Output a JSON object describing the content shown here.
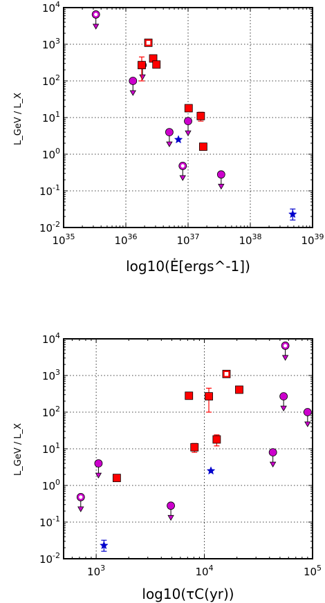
{
  "chart_data": [
    {
      "type": "scatter",
      "xscale": "log",
      "yscale": "log",
      "xlim": [
        1e+35,
        1e+39
      ],
      "ylim": [
        0.01,
        10000
      ],
      "grid": true,
      "xlabel": "log10(Ė[ergs^-1])",
      "ylabel": "L_GeV / L_X",
      "xticks": [
        {
          "v": 1e+35,
          "base": "10",
          "exp": "35"
        },
        {
          "v": 1e+36,
          "base": "10",
          "exp": "36"
        },
        {
          "v": 1e+37,
          "base": "10",
          "exp": "37"
        },
        {
          "v": 1e+38,
          "base": "10",
          "exp": "38"
        },
        {
          "v": 1e+39,
          "base": "10",
          "exp": "39"
        }
      ],
      "yticks": [
        {
          "v": 0.01,
          "base": "10",
          "exp": "-2"
        },
        {
          "v": 0.1,
          "base": "10",
          "exp": "-1"
        },
        {
          "v": 1,
          "base": "10",
          "exp": "0"
        },
        {
          "v": 10,
          "base": "10",
          "exp": "1"
        },
        {
          "v": 100,
          "base": "10",
          "exp": "2"
        },
        {
          "v": 1000,
          "base": "10",
          "exp": "3"
        },
        {
          "v": 10000,
          "base": "10",
          "exp": "4"
        }
      ],
      "points": [
        {
          "marker": "circle",
          "fill": "#cc00cc",
          "x": 1.3e+36,
          "y": 100,
          "upper_limit": true
        },
        {
          "marker": "circle",
          "fill": "#cc00cc",
          "x": 1.85e+36,
          "y": 270,
          "upper_limit": true
        },
        {
          "marker": "circle",
          "fill": "#cc00cc",
          "x": 5e+36,
          "y": 4.0,
          "upper_limit": true
        },
        {
          "marker": "circle",
          "fill": "#cc00cc",
          "x": 1e+37,
          "y": 8.0,
          "upper_limit": true
        },
        {
          "marker": "circle",
          "fill": "#cc00cc",
          "x": 3.4e+37,
          "y": 0.28,
          "upper_limit": true
        },
        {
          "marker": "circle-open",
          "fill": "#cc00cc",
          "x": 3.3e+35,
          "y": 6500,
          "upper_limit": true
        },
        {
          "marker": "circle-open",
          "fill": "#cc00cc",
          "x": 8.2e+36,
          "y": 0.48,
          "upper_limit": true
        },
        {
          "marker": "square",
          "fill": "#ff0000",
          "x": 1.8e+36,
          "y": 270,
          "err_low": 100,
          "err_high": 450
        },
        {
          "marker": "square",
          "fill": "#ff0000",
          "x": 2.75e+36,
          "y": 410
        },
        {
          "marker": "square",
          "fill": "#ff0000",
          "x": 3.1e+36,
          "y": 280
        },
        {
          "marker": "square",
          "fill": "#ff0000",
          "x": 1.02e+37,
          "y": 18
        },
        {
          "marker": "square",
          "fill": "#ff0000",
          "x": 1.6e+37,
          "y": 11,
          "err_low": 8,
          "err_high": 14
        },
        {
          "marker": "square",
          "fill": "#ff0000",
          "x": 1.75e+37,
          "y": 1.6
        },
        {
          "marker": "square-open",
          "fill": "#ff0000",
          "x": 2.3e+36,
          "y": 1100
        },
        {
          "marker": "star",
          "fill": "#0000cc",
          "x": 7e+36,
          "y": 2.5
        },
        {
          "marker": "star",
          "fill": "#0000cc",
          "x": 4.8e+38,
          "y": 0.023,
          "err_low": 0.016,
          "err_high": 0.032
        }
      ]
    },
    {
      "type": "scatter",
      "xscale": "log",
      "yscale": "log",
      "xlim": [
        500,
        100000
      ],
      "ylim": [
        0.01,
        10000
      ],
      "grid": true,
      "xlabel": "log10(τC(yr))",
      "ylabel": "L_GeV / L_X",
      "xticks": [
        {
          "v": 1000,
          "base": "10",
          "exp": "3"
        },
        {
          "v": 10000,
          "base": "10",
          "exp": "4"
        },
        {
          "v": 100000,
          "base": "10",
          "exp": "5"
        }
      ],
      "yticks": [
        {
          "v": 0.01,
          "base": "10",
          "exp": "-2"
        },
        {
          "v": 0.1,
          "base": "10",
          "exp": "-1"
        },
        {
          "v": 1,
          "base": "10",
          "exp": "0"
        },
        {
          "v": 10,
          "base": "10",
          "exp": "1"
        },
        {
          "v": 100,
          "base": "10",
          "exp": "2"
        },
        {
          "v": 1000,
          "base": "10",
          "exp": "3"
        },
        {
          "v": 10000,
          "base": "10",
          "exp": "4"
        }
      ],
      "points": [
        {
          "marker": "circle",
          "fill": "#cc00cc",
          "x": 1050,
          "y": 4.0,
          "upper_limit": true
        },
        {
          "marker": "circle",
          "fill": "#cc00cc",
          "x": 4900,
          "y": 0.28,
          "upper_limit": true
        },
        {
          "marker": "circle",
          "fill": "#cc00cc",
          "x": 43000,
          "y": 8.0,
          "upper_limit": true
        },
        {
          "marker": "circle",
          "fill": "#cc00cc",
          "x": 54000,
          "y": 270,
          "upper_limit": true
        },
        {
          "marker": "circle",
          "fill": "#cc00cc",
          "x": 90000,
          "y": 100,
          "upper_limit": true
        },
        {
          "marker": "circle-open",
          "fill": "#cc00cc",
          "x": 720,
          "y": 0.48,
          "upper_limit": true
        },
        {
          "marker": "circle-open",
          "fill": "#cc00cc",
          "x": 56000,
          "y": 6500,
          "upper_limit": true
        },
        {
          "marker": "square",
          "fill": "#ff0000",
          "x": 1550,
          "y": 1.6
        },
        {
          "marker": "square",
          "fill": "#ff0000",
          "x": 7200,
          "y": 280
        },
        {
          "marker": "square",
          "fill": "#ff0000",
          "x": 8100,
          "y": 11,
          "err_low": 8,
          "err_high": 14
        },
        {
          "marker": "square",
          "fill": "#ff0000",
          "x": 11000,
          "y": 270,
          "err_low": 100,
          "err_high": 450
        },
        {
          "marker": "square",
          "fill": "#ff0000",
          "x": 13000,
          "y": 18,
          "err_low": 12,
          "err_high": 24
        },
        {
          "marker": "square",
          "fill": "#ff0000",
          "x": 21000,
          "y": 410
        },
        {
          "marker": "square-open",
          "fill": "#ff0000",
          "x": 16000,
          "y": 1100
        },
        {
          "marker": "star",
          "fill": "#0000cc",
          "x": 1180,
          "y": 0.023,
          "err_low": 0.016,
          "err_high": 0.032
        },
        {
          "marker": "star",
          "fill": "#0000cc",
          "x": 11500,
          "y": 2.5
        }
      ]
    }
  ]
}
